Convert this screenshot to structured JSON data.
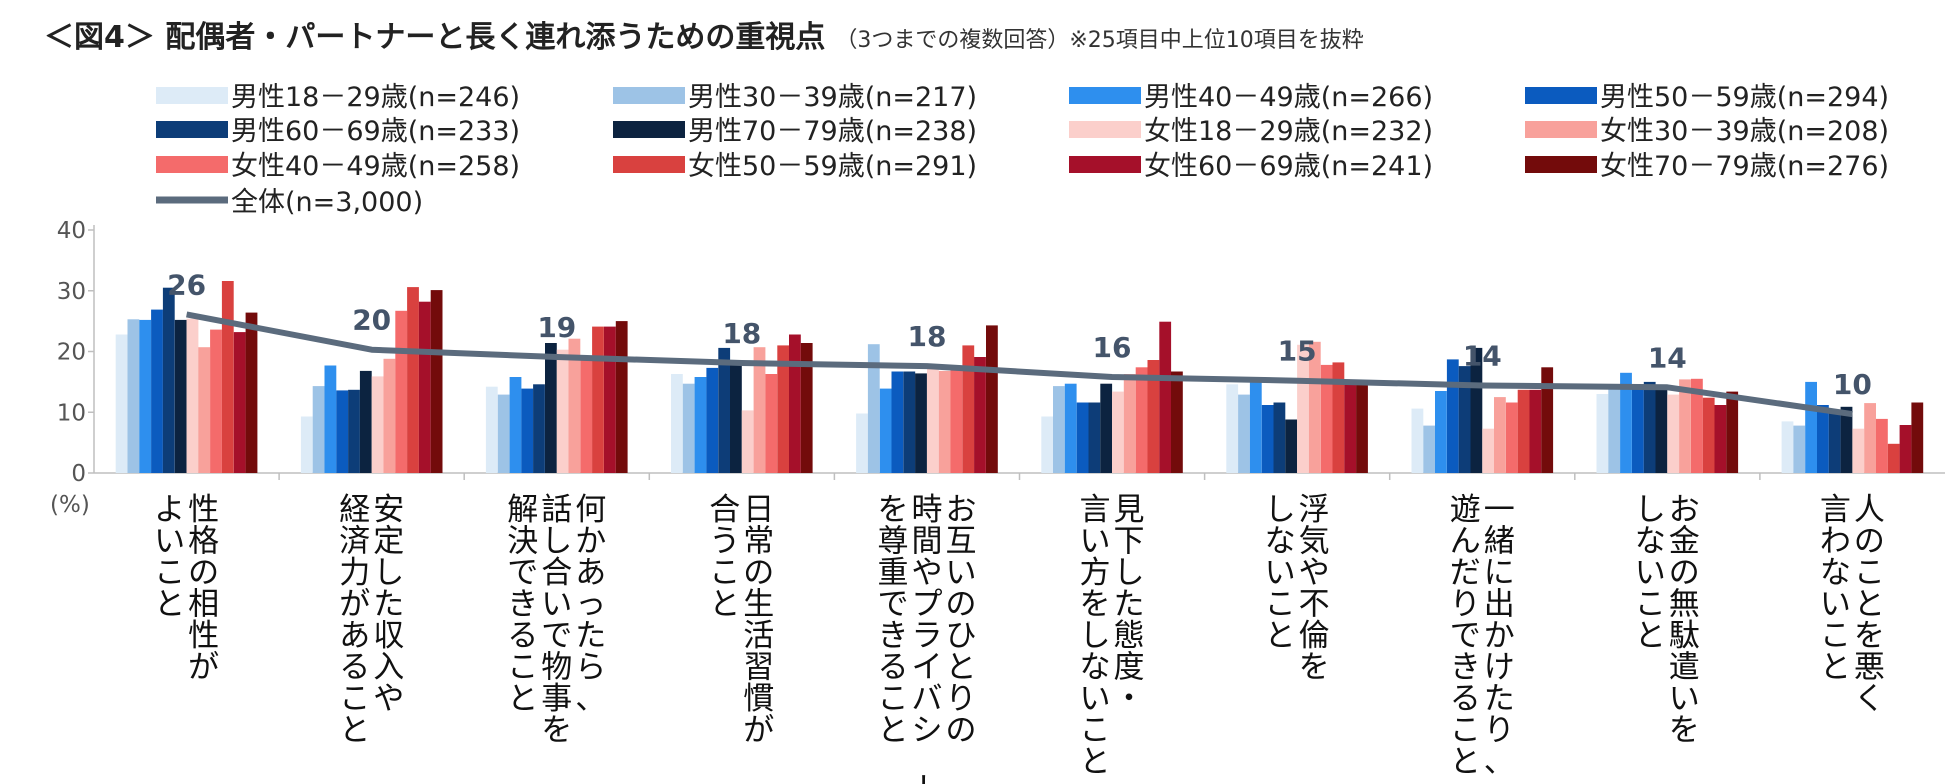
{
  "chart_data": {
    "type": "bar",
    "title": "＜図4＞ 配偶者・パートナーと長く連れ添うための重視点",
    "subtitle": "（3つまでの複数回答）※25項目中上位10項目を抜粋",
    "ylabel": "(%)",
    "ylim": [
      0,
      40
    ],
    "yticks": [
      "0",
      "10",
      "20",
      "30",
      "40"
    ],
    "categories": [
      [
        "性格の相性が",
        "よいこと"
      ],
      [
        "安定した収入や",
        "経済力があること"
      ],
      [
        "何かあったら、",
        "話し合いで物事を",
        "解決できること"
      ],
      [
        "日常の生活習慣が",
        "合うこと"
      ],
      [
        "お互いのひとりの",
        "時間やプライバシー",
        "を尊重できること"
      ],
      [
        "見下した態度・",
        "言い方をしないこと"
      ],
      [
        "浮気や不倫を",
        "しないこと"
      ],
      [
        "一緒に出かけたり、",
        "遊んだりできること"
      ],
      [
        "お金の無駄遣いを",
        "しないこと"
      ],
      [
        "人のことを悪く",
        "言わないこと"
      ]
    ],
    "series": [
      {
        "name": "男性18－29歳(n=246)",
        "color": "#ddebf7",
        "values": [
          22.8,
          9.3,
          14.2,
          16.3,
          9.8,
          9.3,
          14.6,
          10.6,
          13.0,
          8.5
        ]
      },
      {
        "name": "男性30－39歳(n=217)",
        "color": "#9dc3e6",
        "values": [
          25.3,
          14.3,
          12.9,
          14.7,
          21.2,
          14.3,
          12.9,
          7.8,
          14.3,
          7.8
        ]
      },
      {
        "name": "男性40－49歳(n=266)",
        "color": "#2e8fee",
        "values": [
          25.2,
          17.7,
          15.8,
          15.8,
          13.9,
          14.7,
          15.0,
          13.5,
          16.5,
          15.0
        ]
      },
      {
        "name": "男性50－59歳(n=294)",
        "color": "#0b5bbf",
        "values": [
          26.9,
          13.6,
          13.9,
          17.3,
          16.7,
          11.6,
          11.2,
          18.7,
          14.3,
          11.2
        ]
      },
      {
        "name": "男性60－69歳(n=233)",
        "color": "#0d3d78",
        "values": [
          30.5,
          13.7,
          14.6,
          20.6,
          16.7,
          11.6,
          11.6,
          17.6,
          15.0,
          10.3
        ]
      },
      {
        "name": "男性70－79歳(n=238)",
        "color": "#0c2340",
        "values": [
          25.2,
          16.8,
          21.4,
          18.1,
          16.4,
          14.7,
          8.8,
          20.6,
          13.9,
          10.9
        ]
      },
      {
        "name": "女性18－29歳(n=232)",
        "color": "#fbcfcb",
        "values": [
          25.4,
          15.9,
          20.3,
          10.3,
          17.2,
          13.4,
          21.1,
          7.3,
          12.9,
          7.3
        ]
      },
      {
        "name": "女性30－39歳(n=208)",
        "color": "#f8a19b",
        "values": [
          20.7,
          18.8,
          22.1,
          20.7,
          16.8,
          16.3,
          21.6,
          12.5,
          15.4,
          11.5
        ]
      },
      {
        "name": "女性40－49歳(n=258)",
        "color": "#f46b6b",
        "values": [
          23.6,
          26.7,
          19.0,
          16.3,
          17.1,
          17.4,
          17.8,
          11.6,
          15.5,
          8.9
        ]
      },
      {
        "name": "女性50－59歳(n=291)",
        "color": "#d9413f",
        "values": [
          31.6,
          30.6,
          24.1,
          21.0,
          21.0,
          18.6,
          18.2,
          13.7,
          12.4,
          4.8
        ]
      },
      {
        "name": "女性60－69歳(n=241)",
        "color": "#a5102a",
        "values": [
          23.2,
          28.2,
          24.1,
          22.8,
          19.1,
          24.9,
          14.5,
          13.7,
          11.2,
          7.9
        ]
      },
      {
        "name": "女性70－79歳(n=276)",
        "color": "#730b0b",
        "values": [
          26.4,
          30.1,
          25.0,
          21.4,
          24.3,
          16.7,
          14.5,
          17.4,
          13.4,
          11.6
        ]
      }
    ],
    "overall": {
      "name": "全体(n=3,000)",
      "color": "#5b6b7d",
      "values": [
        26.1,
        20.3,
        19.1,
        18.1,
        17.6,
        15.8,
        15.2,
        14.4,
        14.1,
        9.7
      ],
      "labels": [
        "26",
        "20",
        "19",
        "18",
        "18",
        "16",
        "15",
        "14",
        "14",
        "10"
      ]
    }
  }
}
